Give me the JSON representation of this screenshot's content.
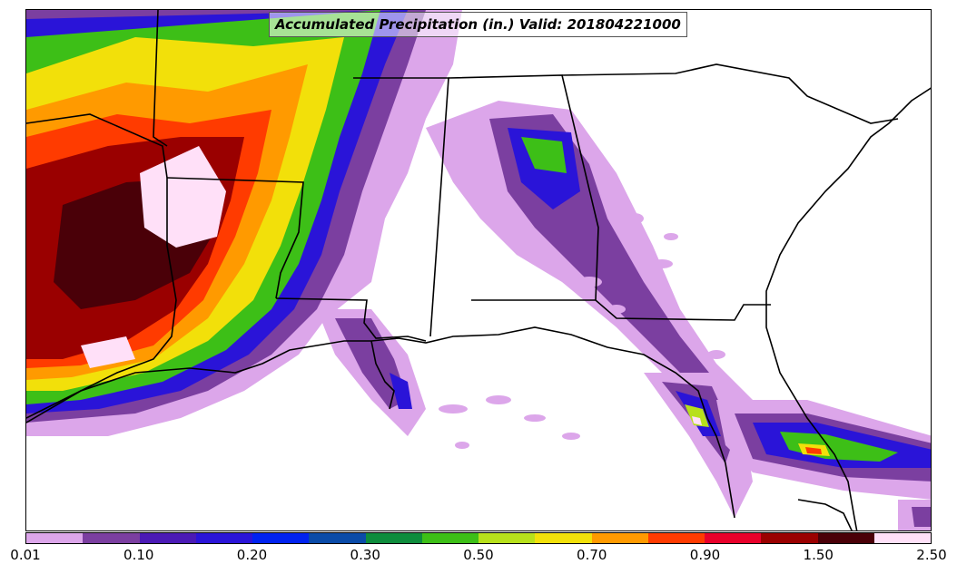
{
  "title": "Accumulated Precipitation (in.) Valid: 201804221000",
  "colorbar": {
    "colors": [
      "#dca6ea",
      "#7b3fa0",
      "#4b1ab5",
      "#2a14d8",
      "#0022f0",
      "#0a4ba8",
      "#0e8c3c",
      "#3dbf17",
      "#b7e01b",
      "#f2e00a",
      "#ff9a00",
      "#ff3b00",
      "#e8002a",
      "#9a0000",
      "#4a0008",
      "#ffe0f8"
    ],
    "tick_labels": [
      "0.01",
      "0.10",
      "0.20",
      "0.30",
      "0.50",
      "0.70",
      "0.90",
      "1.50",
      "2.50"
    ]
  }
}
